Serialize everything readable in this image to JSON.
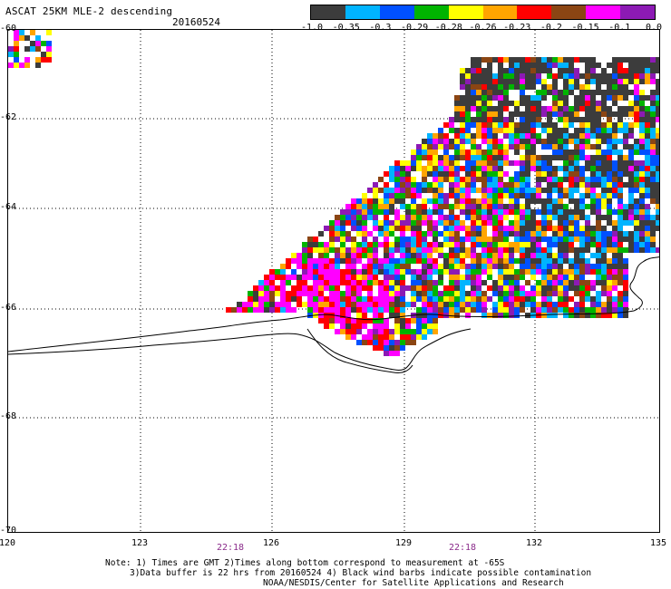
{
  "header": {
    "title": "ASCAT 25KM MLE-2 descending",
    "date": "20160524"
  },
  "colorbar": {
    "labels": [
      "-1.0",
      "-0.35",
      "-0.3",
      "-0.29",
      "-0.28",
      "-0.26",
      "-0.23",
      "-0.2",
      "-0.15",
      "-0.1",
      "0.0"
    ],
    "colors": [
      "#3c3c3c",
      "#00b4ff",
      "#0050ff",
      "#00b400",
      "#ffff00",
      "#ffa500",
      "#ff0000",
      "#8b4513",
      "#ff00ff",
      "#8c1ab4"
    ]
  },
  "map": {
    "lat_labels": [
      "-60",
      "-62",
      "-64",
      "-66",
      "-68",
      "-70"
    ],
    "lon_labels": [
      "120",
      "123",
      "126",
      "129",
      "132",
      "135"
    ],
    "time_labels": [
      "22:18",
      "22:18"
    ],
    "lat_range": [
      -70,
      -60
    ],
    "lon_range": [
      120,
      135
    ]
  },
  "notes": {
    "line1": "Note: 1) Times are GMT 2)Times along bottom correspond to measurement at -65S",
    "line2": "3)Data buffer is 22 hrs from 20160524 4) Black wind barbs indicate possible contamination",
    "line3": "NOAA/NESDIS/Center for Satellite Applications and Research"
  }
}
